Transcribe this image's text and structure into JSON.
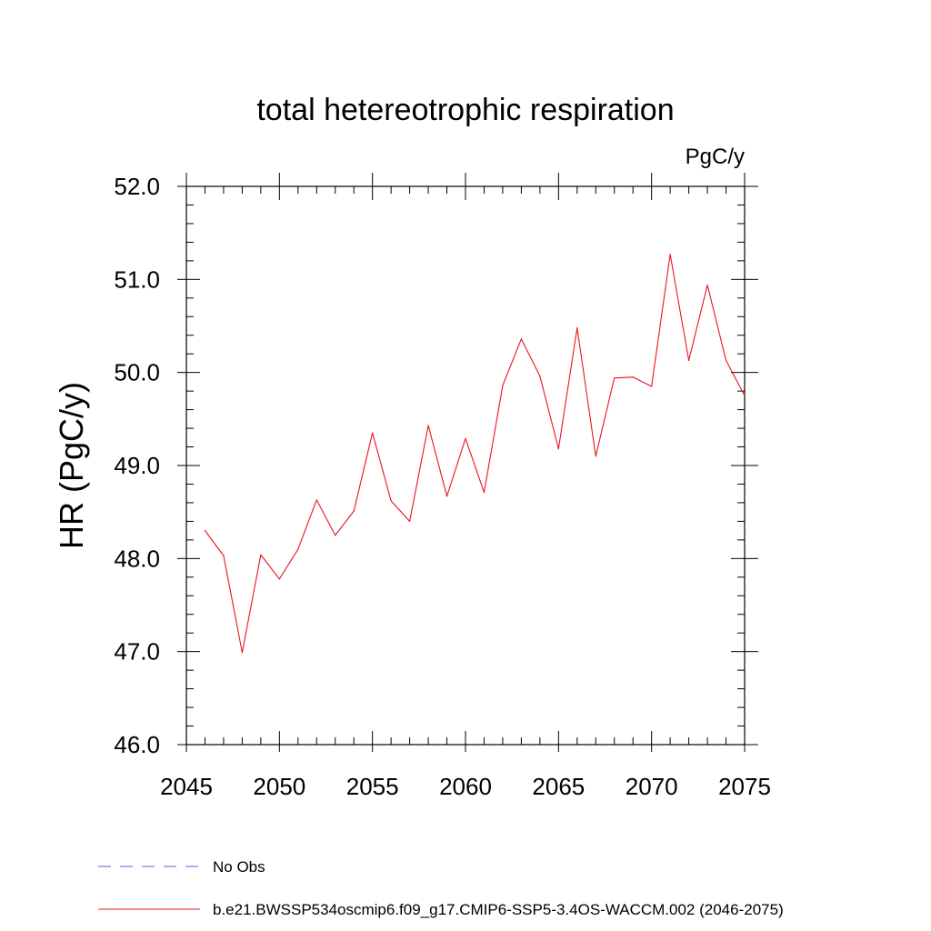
{
  "chart_data": {
    "type": "line",
    "title": "total hetereotrophic respiration",
    "units_label": "PgC/y",
    "xlabel": "",
    "ylabel": "HR  (PgC/y)",
    "xlim": [
      2045,
      2075
    ],
    "ylim": [
      46.0,
      52.0
    ],
    "x_ticks": [
      2045,
      2050,
      2055,
      2060,
      2065,
      2070,
      2075
    ],
    "x_tick_labels": [
      "2045",
      "2050",
      "2055",
      "2060",
      "2065",
      "2070",
      "2075"
    ],
    "y_ticks": [
      46.0,
      47.0,
      48.0,
      49.0,
      50.0,
      51.0,
      52.0
    ],
    "y_tick_labels": [
      "46.0",
      "47.0",
      "48.0",
      "49.0",
      "50.0",
      "51.0",
      "52.0"
    ],
    "x_minor_step": 1,
    "y_minor_step": 0.2,
    "grid": false,
    "legend_placement": "bottom-left",
    "series": [
      {
        "name": "b.e21.BWSSP534oscmip6.f09_g17.CMIP6-SSP5-3.4OS-WACCM.002 (2046-2075)",
        "color": "#e8141e",
        "style": "solid",
        "x": [
          2046,
          2047,
          2048,
          2049,
          2050,
          2051,
          2052,
          2053,
          2054,
          2055,
          2056,
          2057,
          2058,
          2059,
          2060,
          2061,
          2062,
          2063,
          2064,
          2065,
          2066,
          2067,
          2068,
          2069,
          2070,
          2071,
          2072,
          2073,
          2074,
          2075
        ],
        "values": [
          48.3,
          48.03,
          46.99,
          48.04,
          47.78,
          48.1,
          48.63,
          48.25,
          48.51,
          49.35,
          48.62,
          48.4,
          49.43,
          48.67,
          49.29,
          48.71,
          49.86,
          50.36,
          49.96,
          49.18,
          50.48,
          49.1,
          49.94,
          49.95,
          49.85,
          51.27,
          50.13,
          50.94,
          50.13,
          49.75
        ]
      }
    ],
    "legend": [
      {
        "label": "No Obs",
        "color": "#6a5acd",
        "style": "dashed"
      },
      {
        "label": "b.e21.BWSSP534oscmip6.f09_g17.CMIP6-SSP5-3.4OS-WACCM.002 (2046-2075)",
        "color": "#e8141e",
        "style": "solid"
      }
    ]
  }
}
